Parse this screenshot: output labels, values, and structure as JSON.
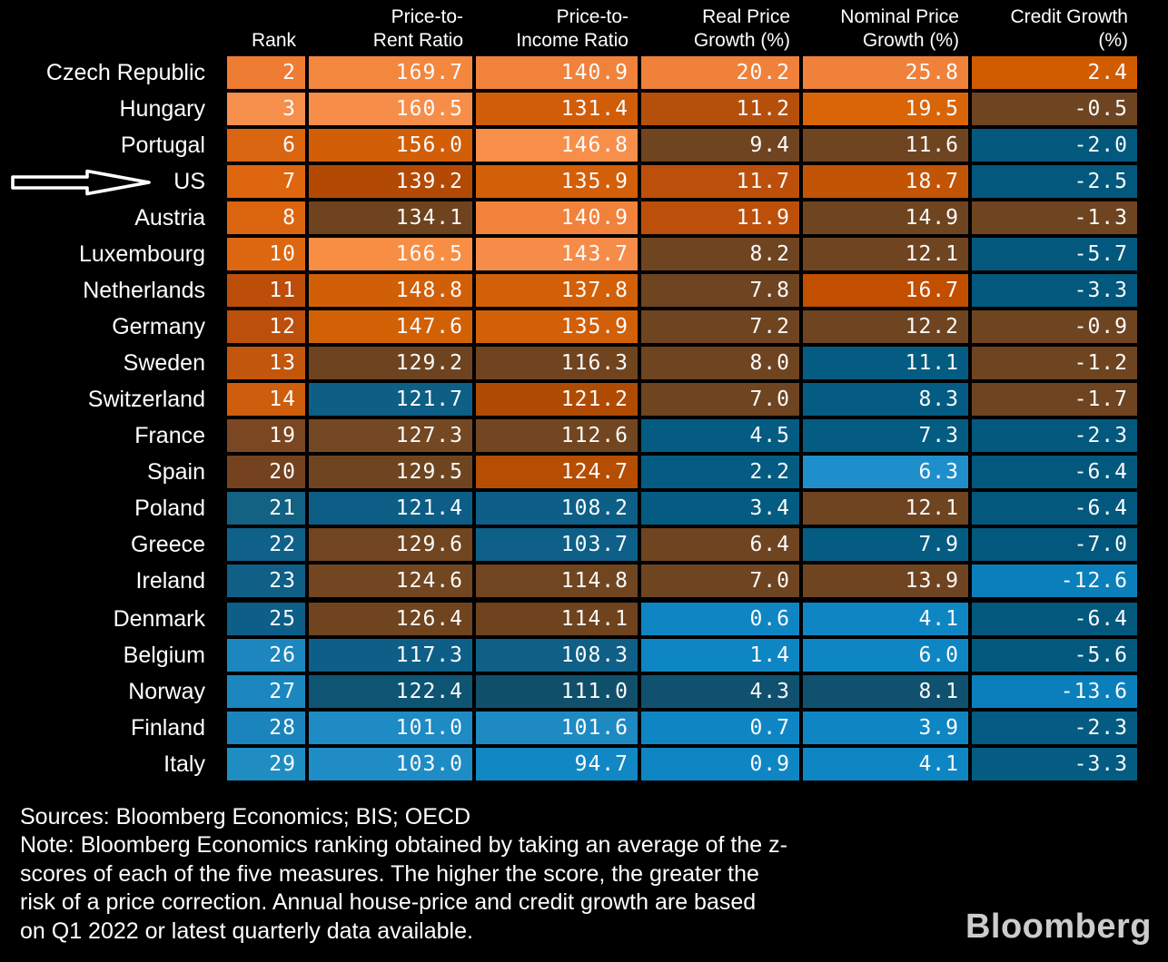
{
  "header": {
    "columns": [
      "Rank",
      "Price-to-\nRent Ratio",
      "Price-to-\nIncome Ratio",
      "Real Price\nGrowth (%)",
      "Nominal Price\nGrowth (%)",
      "Credit Growth\n(%)"
    ]
  },
  "annotation": {
    "arrow_points_to": "US"
  },
  "footer": {
    "sources": "Sources: Bloomberg Economics; BIS; OECD",
    "note": "Note: Bloomberg Economics ranking obtained by taking an average of the z-\nscores of each of the five measures. The higher the score, the greater the\nrisk of a price correction. Annual house-price and credit growth are based\non Q1 2022 or latest quarterly data available.",
    "logo": "Bloomberg"
  },
  "colors": {
    "background": "#000000",
    "text": "#FFFFFF",
    "logo": "#CCCCCC",
    "palette_high_orange": "#F68E49",
    "palette_mid_orange": "#D66208",
    "palette_brown": "#6F4421",
    "palette_dark_blue": "#045C82",
    "palette_bright_blue": "#0F86C4"
  },
  "chart_data": {
    "type": "heatmap",
    "title": "",
    "columns": [
      "Rank",
      "Price-to-Rent Ratio",
      "Price-to-Income Ratio",
      "Real Price Growth (%)",
      "Nominal Price Growth (%)",
      "Credit Growth (%)"
    ],
    "rows": [
      {
        "country": "Czech Republic",
        "values": [
          2,
          169.7,
          140.9,
          20.2,
          25.8,
          2.4
        ],
        "colors": [
          "#EE7C33",
          "#F4873E",
          "#F1823B",
          "#F0813A",
          "#F0813A",
          "#D15C00"
        ]
      },
      {
        "country": "Hungary",
        "values": [
          3,
          160.5,
          131.4,
          11.2,
          19.5,
          -0.5
        ],
        "colors": [
          "#F68F4C",
          "#F68E49",
          "#D15D08",
          "#B5500C",
          "#D96508",
          "#6F4421"
        ]
      },
      {
        "country": "Portugal",
        "values": [
          6,
          156.0,
          146.8,
          9.4,
          11.6,
          -2.0
        ],
        "colors": [
          "#D96510",
          "#D25E07",
          "#F78F4B",
          "#6F4421",
          "#6F4421",
          "#03587E"
        ]
      },
      {
        "country": "US",
        "values": [
          7,
          139.2,
          135.9,
          11.7,
          18.7,
          -2.5
        ],
        "colors": [
          "#DD660E",
          "#B24A04",
          "#D35F08",
          "#BC500B",
          "#C25405",
          "#03587E"
        ]
      },
      {
        "country": "Austria",
        "values": [
          8,
          134.1,
          140.9,
          11.9,
          14.9,
          -1.3
        ],
        "colors": [
          "#DB650F",
          "#6F431E",
          "#F1823C",
          "#BC500B",
          "#6F4421",
          "#6F4421"
        ]
      },
      {
        "country": "Luxembourg",
        "values": [
          10,
          166.5,
          143.7,
          8.2,
          12.1,
          -5.7
        ],
        "colors": [
          "#DC6710",
          "#F78E44",
          "#F68C49",
          "#6F4421",
          "#6F4421",
          "#03587E"
        ]
      },
      {
        "country": "Netherlands",
        "values": [
          11,
          148.8,
          137.8,
          7.8,
          16.7,
          -3.3
        ],
        "colors": [
          "#BC4E0A",
          "#D15F07",
          "#D26008",
          "#6F4421",
          "#C24E00",
          "#03587E"
        ]
      },
      {
        "country": "Germany",
        "values": [
          12,
          147.6,
          135.9,
          7.2,
          12.2,
          -0.9
        ],
        "colors": [
          "#BC4F0B",
          "#D26106",
          "#D26008",
          "#6F4421",
          "#6F4421",
          "#6F4421"
        ]
      },
      {
        "country": "Sweden",
        "values": [
          13,
          129.2,
          116.3,
          8.0,
          11.1,
          -1.2
        ],
        "colors": [
          "#C3560D",
          "#6E4420",
          "#6F441F",
          "#6F4421",
          "#045C82",
          "#6F4421"
        ]
      },
      {
        "country": "Switzerland",
        "values": [
          14,
          121.7,
          121.2,
          7.0,
          8.3,
          -1.7
        ],
        "colors": [
          "#CE5D0D",
          "#0E5F85",
          "#B04B04",
          "#6F4421",
          "#045C82",
          "#6F4421"
        ]
      },
      {
        "country": "France",
        "values": [
          19,
          127.3,
          112.6,
          4.5,
          7.3,
          -2.3
        ],
        "colors": [
          "#7A4722",
          "#744823",
          "#714620",
          "#045C82",
          "#045C82",
          "#03587E"
        ]
      },
      {
        "country": "Spain",
        "values": [
          20,
          129.5,
          124.7,
          2.2,
          6.3,
          -6.4
        ],
        "colors": [
          "#74421F",
          "#6F4521",
          "#B54D02",
          "#045C82",
          "#1E8FCB",
          "#03587E"
        ]
      },
      {
        "country": "Poland",
        "values": [
          21,
          121.4,
          108.2,
          3.4,
          12.1,
          -6.4
        ],
        "colors": [
          "#136183",
          "#0C5E86",
          "#0D5F87",
          "#045C82",
          "#6F4421",
          "#03587E"
        ]
      },
      {
        "country": "Greece",
        "values": [
          22,
          129.6,
          103.7,
          6.4,
          7.9,
          -7.0
        ],
        "colors": [
          "#10618A",
          "#70451F",
          "#0E6089",
          "#6F4421",
          "#045C82",
          "#03587E"
        ]
      },
      {
        "country": "Ireland",
        "values": [
          23,
          124.6,
          114.8,
          7.0,
          13.9,
          -12.6
        ],
        "colors": [
          "#0F5F86",
          "#714621",
          "#6F4620",
          "#6F4421",
          "#6F4421",
          "#0B7FBC"
        ]
      },
      {
        "country": "Denmark",
        "gap_before": true,
        "values": [
          25,
          126.4,
          114.1,
          0.6,
          4.1,
          -6.4
        ],
        "colors": [
          "#0D5E88",
          "#6F441E",
          "#6E431D",
          "#0F86C4",
          "#0F86C4",
          "#03587E"
        ]
      },
      {
        "country": "Belgium",
        "values": [
          26,
          117.3,
          108.3,
          1.4,
          6.0,
          -5.6
        ],
        "colors": [
          "#1D86BE",
          "#0E5F87",
          "#0F5F86",
          "#0F86C4",
          "#0F86C4",
          "#03587E"
        ]
      },
      {
        "country": "Norway",
        "values": [
          27,
          122.4,
          111.0,
          4.3,
          8.1,
          -13.6
        ],
        "colors": [
          "#1C86BF",
          "#0D5572",
          "#11506B",
          "#0F516E",
          "#0F516E",
          "#0B7FBC"
        ]
      },
      {
        "country": "Finland",
        "values": [
          28,
          101.0,
          101.6,
          0.7,
          3.9,
          -2.3
        ],
        "colors": [
          "#1B84BC",
          "#1E8BC4",
          "#1E8AC2",
          "#0F86C4",
          "#0F86C4",
          "#045C82"
        ]
      },
      {
        "country": "Italy",
        "values": [
          29,
          103.0,
          94.7,
          0.9,
          4.1,
          -3.3
        ],
        "colors": [
          "#1F8DC2",
          "#1F8CC6",
          "#1187C4",
          "#0F86C4",
          "#0F86C4",
          "#045C82"
        ]
      }
    ]
  }
}
